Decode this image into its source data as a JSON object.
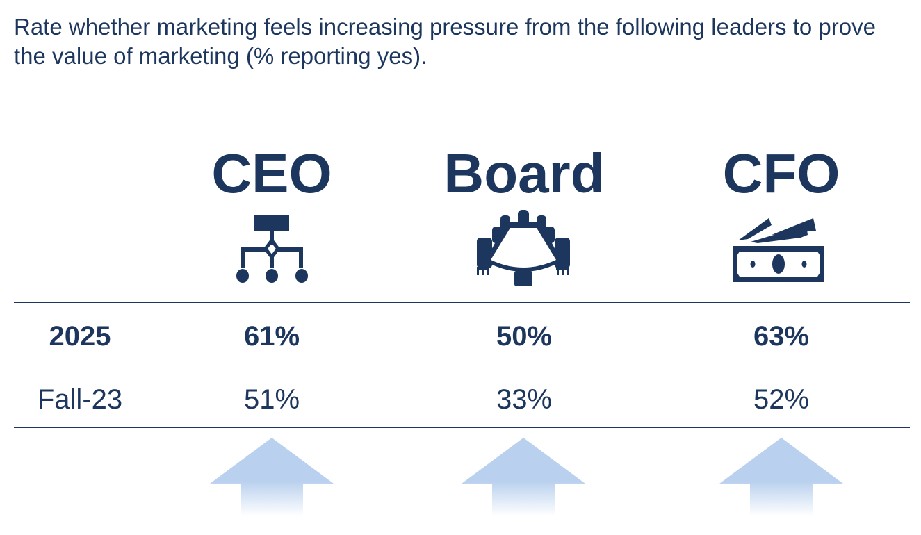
{
  "question": "Rate whether marketing feels increasing pressure from the following leaders to prove the value of marketing (% reporting yes).",
  "colors": {
    "text": "#1c365e",
    "arrow": "#b9d0ee"
  },
  "chart_data": {
    "type": "table",
    "title": "Rate whether marketing feels increasing pressure from the following leaders to prove the value of marketing (% reporting yes).",
    "categories": [
      "CEO",
      "Board",
      "CFO"
    ],
    "icons": [
      "org-chart-icon",
      "boardroom-table-icon",
      "money-bills-icon"
    ],
    "series": [
      {
        "name": "2025",
        "values": [
          61,
          50,
          63
        ],
        "labels": [
          "61%",
          "50%",
          "63%"
        ]
      },
      {
        "name": "Fall-23",
        "values": [
          51,
          33,
          52
        ],
        "labels": [
          "51%",
          "33%",
          "52%"
        ]
      }
    ],
    "trend": [
      "up",
      "up",
      "up"
    ]
  }
}
